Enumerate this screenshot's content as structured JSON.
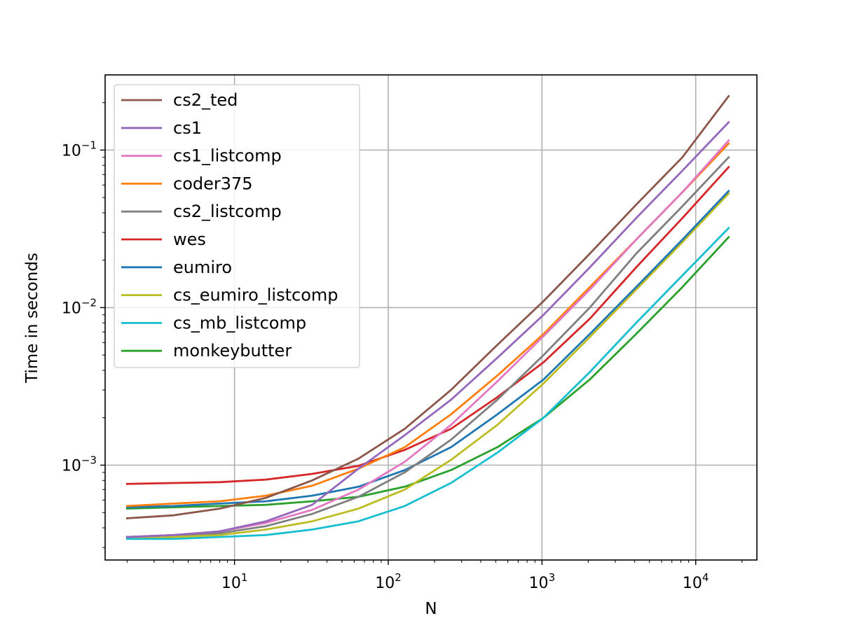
{
  "chart_data": {
    "type": "line",
    "title": "",
    "xlabel": "N",
    "ylabel": "Time in seconds",
    "xscale": "log",
    "yscale": "log",
    "xlim": [
      1.44,
      25000
    ],
    "ylim": [
      0.00025,
      0.3
    ],
    "grid": true,
    "legend_location": "upper-left",
    "x": [
      2,
      4,
      8,
      16,
      32,
      64,
      128,
      256,
      512,
      1024,
      2048,
      4096,
      8192,
      16384
    ],
    "x_ticks": [
      {
        "value": 10,
        "base": "10",
        "exp": "1"
      },
      {
        "value": 100,
        "base": "10",
        "exp": "2"
      },
      {
        "value": 1000,
        "base": "10",
        "exp": "3"
      },
      {
        "value": 10000,
        "base": "10",
        "exp": "4"
      }
    ],
    "y_ticks": [
      {
        "value": 0.001,
        "base": "10",
        "exp": "−3"
      },
      {
        "value": 0.01,
        "base": "10",
        "exp": "−2"
      },
      {
        "value": 0.1,
        "base": "10",
        "exp": "−1"
      }
    ],
    "series": [
      {
        "name": "cs2_ted",
        "color": "#8c564b",
        "values": [
          0.00046,
          0.00048,
          0.00053,
          0.00062,
          0.0008,
          0.0011,
          0.0017,
          0.003,
          0.0058,
          0.011,
          0.022,
          0.045,
          0.09,
          0.22
        ]
      },
      {
        "name": "cs1",
        "color": "#9467bd",
        "values": [
          0.00035,
          0.00036,
          0.00038,
          0.00044,
          0.00056,
          0.00095,
          0.00155,
          0.0026,
          0.0048,
          0.009,
          0.018,
          0.037,
          0.074,
          0.15
        ]
      },
      {
        "name": "cs1_listcomp",
        "color": "#e377c2",
        "values": [
          0.00035,
          0.00036,
          0.00038,
          0.00043,
          0.00052,
          0.0007,
          0.00105,
          0.0018,
          0.0034,
          0.0066,
          0.013,
          0.027,
          0.054,
          0.115
        ]
      },
      {
        "name": "coder375",
        "color": "#ff7f0e",
        "values": [
          0.00055,
          0.00057,
          0.00059,
          0.00064,
          0.00074,
          0.00095,
          0.0013,
          0.0021,
          0.0037,
          0.0068,
          0.0135,
          0.027,
          0.054,
          0.11
        ]
      },
      {
        "name": "cs2_listcomp",
        "color": "#7f7f7f",
        "values": [
          0.00035,
          0.00036,
          0.00037,
          0.00041,
          0.00049,
          0.00063,
          0.0009,
          0.00145,
          0.0026,
          0.005,
          0.01,
          0.022,
          0.044,
          0.09
        ]
      },
      {
        "name": "wes",
        "color": "#d62728",
        "values": [
          0.00076,
          0.00077,
          0.00078,
          0.00081,
          0.00088,
          0.00099,
          0.00125,
          0.0017,
          0.0027,
          0.0045,
          0.0085,
          0.018,
          0.037,
          0.078
        ]
      },
      {
        "name": "eumiro",
        "color": "#1f77b4",
        "values": [
          0.00054,
          0.00055,
          0.00057,
          0.00059,
          0.00064,
          0.00073,
          0.00093,
          0.0013,
          0.0021,
          0.0035,
          0.0068,
          0.0135,
          0.027,
          0.055
        ]
      },
      {
        "name": "cs_eumiro_listcomp",
        "color": "#bcbd22",
        "values": [
          0.00035,
          0.00035,
          0.00036,
          0.00039,
          0.00044,
          0.00053,
          0.0007,
          0.00108,
          0.0018,
          0.0033,
          0.0065,
          0.013,
          0.026,
          0.053
        ]
      },
      {
        "name": "cs_mb_listcomp",
        "color": "#17becf",
        "values": [
          0.00034,
          0.00034,
          0.00035,
          0.00036,
          0.00039,
          0.00044,
          0.00055,
          0.00077,
          0.0012,
          0.002,
          0.0039,
          0.008,
          0.016,
          0.032
        ]
      },
      {
        "name": "monkeybutter",
        "color": "#2ca02c",
        "values": [
          0.00053,
          0.00054,
          0.00055,
          0.00056,
          0.00059,
          0.00063,
          0.00073,
          0.00093,
          0.0013,
          0.002,
          0.0035,
          0.0068,
          0.0135,
          0.028
        ]
      }
    ]
  }
}
